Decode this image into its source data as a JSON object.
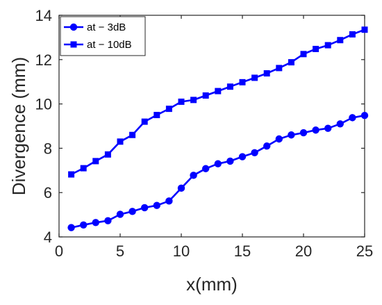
{
  "chart_data": {
    "type": "line",
    "xlabel": "x(mm)",
    "ylabel": "Divergence (mm)",
    "xlim": [
      0,
      25
    ],
    "ylim": [
      4,
      14
    ],
    "xticks": [
      0,
      5,
      10,
      15,
      20,
      25
    ],
    "yticks": [
      4,
      6,
      8,
      10,
      12,
      14
    ],
    "grid": false,
    "legend_position": "top-left",
    "x": [
      1,
      2,
      3,
      4,
      5,
      6,
      7,
      8,
      9,
      10,
      11,
      12,
      13,
      14,
      15,
      16,
      17,
      18,
      19,
      20,
      21,
      22,
      23,
      24,
      25
    ],
    "series": [
      {
        "name": "at − 3dB",
        "marker": "circle",
        "color": "#0000ff",
        "values": [
          4.42,
          4.54,
          4.65,
          4.73,
          5.02,
          5.15,
          5.32,
          5.42,
          5.62,
          6.2,
          6.78,
          7.08,
          7.3,
          7.42,
          7.62,
          7.8,
          8.1,
          8.42,
          8.6,
          8.7,
          8.82,
          8.9,
          9.1,
          9.38,
          9.48
        ]
      },
      {
        "name": "at − 10dB",
        "marker": "square",
        "color": "#0000ff",
        "values": [
          6.82,
          7.1,
          7.42,
          7.72,
          8.3,
          8.6,
          9.2,
          9.5,
          9.78,
          10.1,
          10.18,
          10.38,
          10.58,
          10.78,
          10.98,
          11.18,
          11.38,
          11.62,
          11.88,
          12.25,
          12.48,
          12.65,
          12.88,
          13.14,
          13.35
        ]
      }
    ]
  }
}
